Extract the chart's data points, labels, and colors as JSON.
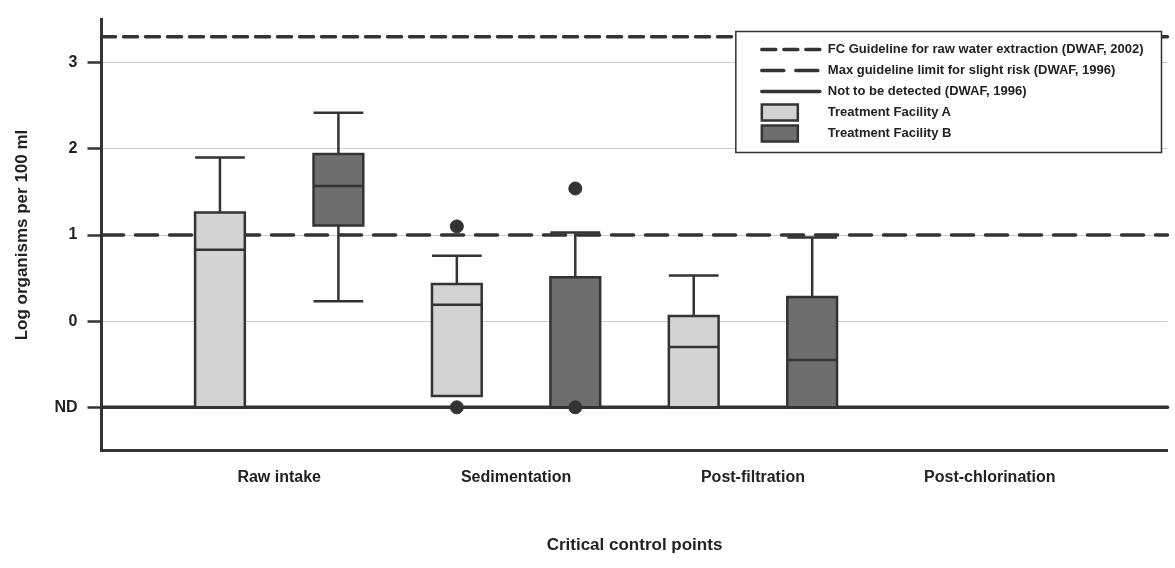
{
  "chart_data": {
    "type": "box",
    "xlabel": "Critical control points",
    "ylabel": "Log organisms per 100 ml",
    "categories": [
      "Raw intake",
      "Sedimentation",
      "Post-filtration",
      "Post-chlorination"
    ],
    "series": [
      {
        "name": "Treatment Facility A",
        "color": "#d3d3d3",
        "boxes": [
          {
            "low": -1,
            "q1": -1,
            "median": 0.83,
            "q3": 1.26,
            "high": 1.9
          },
          {
            "low": -0.87,
            "q1": -0.87,
            "median": 0.19,
            "q3": 0.43,
            "high": 0.76,
            "outliers": [
              1.1,
              -1
            ]
          },
          {
            "low": -1,
            "q1": -1,
            "median": -0.3,
            "q3": 0.06,
            "high": 0.53
          },
          null
        ]
      },
      {
        "name": "Treatment Facility B",
        "color": "#6e6e6e",
        "boxes": [
          {
            "low": 0.23,
            "q1": 1.11,
            "median": 1.57,
            "q3": 1.94,
            "high": 2.42
          },
          {
            "low": -1,
            "q1": -1,
            "median": -1,
            "q3": 0.51,
            "high": 1.03,
            "outliers": [
              1.54,
              -1
            ]
          },
          {
            "low": -1,
            "q1": -1,
            "median": -0.45,
            "q3": 0.28,
            "high": 0.97
          },
          null
        ]
      }
    ],
    "ylim": [
      -1.5,
      3.5
    ],
    "yticks": [
      {
        "value": -1,
        "label": "ND"
      },
      0,
      1,
      2,
      3
    ],
    "ref_lines": [
      {
        "axis": "y",
        "value": 3.3,
        "label": "FC Guideline for raw water extraction (DWAF, 2002)",
        "color": "#333333",
        "line_style": "dashed"
      },
      {
        "axis": "y",
        "value": 1,
        "label": "Max guideline limit for slight risk (DWAF, 1996)",
        "color": "#333333",
        "line_style": "dashed"
      },
      {
        "axis": "y",
        "value": -1,
        "label": "Not to be detected (DWAF, 1996)",
        "color": "#333333",
        "line_style": "solid"
      }
    ],
    "grid": "y",
    "legend": "top right"
  }
}
